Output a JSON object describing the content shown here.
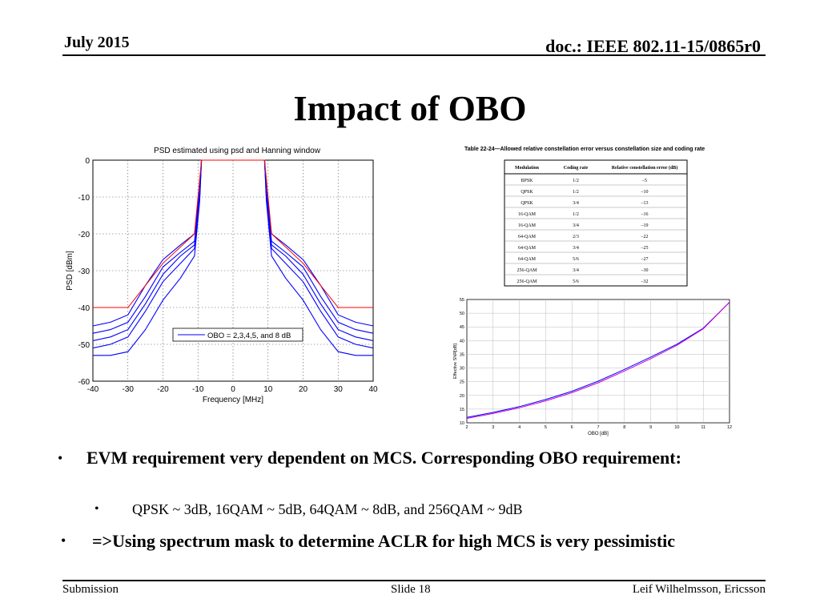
{
  "header": {
    "date": "July 2015",
    "doc_id": "doc.: IEEE 802.11-15/0865r0"
  },
  "slide": {
    "title": "Impact of OBO",
    "bullets": [
      {
        "text": "EVM requirement very dependent on MCS. Corresponding OBO requirement:",
        "sub": "QPSK ~ 3dB, 16QAM ~ 5dB, 64QAM ~ 8dB, and 256QAM ~ 9dB"
      },
      {
        "text": "=>Using spectrum mask to determine ACLR for high MCS is very pessimistic"
      }
    ],
    "bullet_glyph": "•"
  },
  "footer": {
    "left": "Submission",
    "center": "Slide 18",
    "right": "Leif Wilhelmsson, Ericsson"
  },
  "chart_data": [
    {
      "type": "line",
      "title": "PSD estimated using psd and Hanning window",
      "xlabel": "Frequency [MHz]",
      "ylabel": "PSD [dBm]",
      "xlim": [
        -40,
        40
      ],
      "ylim": [
        -60,
        0
      ],
      "xticks": [
        -40,
        -30,
        -20,
        -10,
        0,
        10,
        20,
        30,
        40
      ],
      "yticks": [
        0,
        -10,
        -20,
        -30,
        -40,
        -50,
        -60
      ],
      "grid": true,
      "legend": {
        "text": "OBO = 2,3,4,5, and 8 dB",
        "placement": "lower-center"
      },
      "colors": {
        "mask": "#ff0000",
        "obo": "#0000ff"
      },
      "mask": {
        "x": [
          -40,
          -30,
          -20,
          -11,
          -9,
          9,
          11,
          20,
          30,
          40
        ],
        "y": [
          -40,
          -40,
          -28,
          -20,
          0,
          0,
          -20,
          -28,
          -40,
          -40
        ]
      },
      "series": [
        {
          "x": [
            -40,
            -35,
            -30,
            -25,
            -20,
            -15,
            -11,
            -9.5,
            -9,
            9,
            9.5,
            11,
            15,
            20,
            25,
            30,
            35,
            40
          ],
          "y": [
            -45,
            -44,
            -42,
            -34,
            -27,
            -23,
            -20,
            -8,
            0,
            0,
            -8,
            -20,
            -23,
            -27,
            -34,
            -42,
            -44,
            -45
          ]
        },
        {
          "x": [
            -40,
            -35,
            -30,
            -25,
            -20,
            -15,
            -11,
            -9.5,
            -9,
            9,
            9.5,
            11,
            15,
            20,
            25,
            30,
            35,
            40
          ],
          "y": [
            -47,
            -46,
            -44,
            -37,
            -29,
            -25,
            -22,
            -9,
            0,
            0,
            -9,
            -22,
            -25,
            -29,
            -37,
            -44,
            -46,
            -47
          ]
        },
        {
          "x": [
            -40,
            -35,
            -30,
            -25,
            -20,
            -15,
            -11,
            -9.5,
            -9,
            9,
            9.5,
            11,
            15,
            20,
            25,
            30,
            35,
            40
          ],
          "y": [
            -49,
            -48,
            -46,
            -39,
            -31,
            -26,
            -23,
            -9,
            0,
            0,
            -9,
            -23,
            -26,
            -31,
            -39,
            -46,
            -48,
            -49
          ]
        },
        {
          "x": [
            -40,
            -35,
            -30,
            -25,
            -20,
            -15,
            -11,
            -9.5,
            -9,
            9,
            9.5,
            11,
            15,
            20,
            25,
            30,
            35,
            40
          ],
          "y": [
            -51,
            -50,
            -48,
            -41,
            -33,
            -28,
            -24,
            -10,
            0,
            0,
            -10,
            -24,
            -28,
            -33,
            -41,
            -48,
            -50,
            -51
          ]
        },
        {
          "x": [
            -40,
            -35,
            -30,
            -25,
            -20,
            -15,
            -11,
            -9.5,
            -9,
            9,
            9.5,
            11,
            15,
            20,
            25,
            30,
            35,
            40
          ],
          "y": [
            -53,
            -53,
            -52,
            -46,
            -38,
            -32,
            -26,
            -11,
            0,
            0,
            -11,
            -26,
            -32,
            -38,
            -46,
            -52,
            -53,
            -53
          ]
        }
      ]
    },
    {
      "type": "table",
      "title": "Table 22-24—Allowed relative constellation error versus constellation size and coding rate",
      "columns": [
        "Modulation",
        "Coding rate",
        "Relative constellation error (dB)"
      ],
      "rows": [
        [
          "BPSK",
          "1/2",
          "–5"
        ],
        [
          "QPSK",
          "1/2",
          "–10"
        ],
        [
          "QPSK",
          "3/4",
          "–13"
        ],
        [
          "16-QAM",
          "1/2",
          "–16"
        ],
        [
          "16-QAM",
          "3/4",
          "–19"
        ],
        [
          "64-QAM",
          "2/3",
          "–22"
        ],
        [
          "64-QAM",
          "3/4",
          "–25"
        ],
        [
          "64-QAM",
          "5/6",
          "–27"
        ],
        [
          "256-QAM",
          "3/4",
          "–30"
        ],
        [
          "256-QAM",
          "5/6",
          "–32"
        ]
      ]
    },
    {
      "type": "line",
      "xlabel": "OBO [dB]",
      "ylabel": "Effective SNR[dB]",
      "xlim": [
        2,
        12
      ],
      "ylim": [
        10,
        55
      ],
      "xticks": [
        2,
        3,
        4,
        5,
        6,
        7,
        8,
        9,
        10,
        11,
        12
      ],
      "yticks": [
        10,
        15,
        20,
        25,
        30,
        35,
        40,
        45,
        50,
        55
      ],
      "grid": true,
      "colors": [
        "#0000ff",
        "#cc00cc"
      ],
      "series": [
        {
          "x": [
            2,
            3,
            4,
            5,
            6,
            7,
            8,
            9,
            10,
            11,
            12
          ],
          "y": [
            12,
            13.8,
            15.9,
            18.5,
            21.5,
            25.2,
            29.5,
            34,
            38.7,
            44.5,
            54
          ]
        },
        {
          "x": [
            2,
            3,
            4,
            5,
            6,
            7,
            8,
            9,
            10,
            11,
            12
          ],
          "y": [
            11.6,
            13.4,
            15.5,
            18.0,
            21.0,
            24.6,
            28.9,
            33.4,
            38.3,
            44.3,
            54
          ]
        }
      ]
    }
  ]
}
